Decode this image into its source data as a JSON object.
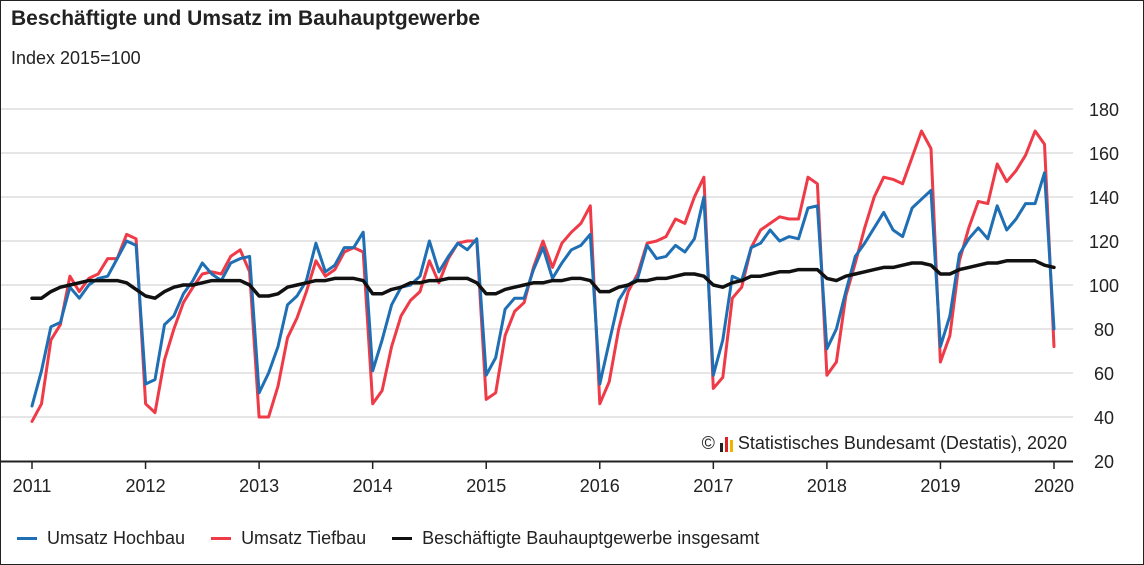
{
  "title": "Beschäftigte und Umsatz im Bauhauptgewerbe",
  "subtitle": "Index 2015=100",
  "copyright": "Statistisches Bundesamt (Destatis), 2020",
  "copyright_symbol": "©",
  "colors": {
    "hochbau": "#1f6fb4",
    "tiefbau": "#ef3b47",
    "beschaeftigte": "#111111",
    "grid": "#cccccc",
    "axis": "#222222"
  },
  "chart_data": {
    "type": "line",
    "x_start": "2011-01",
    "x_frequency": "monthly",
    "xlim": [
      "2011-01",
      "2020-01"
    ],
    "ylim": [
      20,
      180
    ],
    "yticks": [
      20,
      40,
      60,
      80,
      100,
      120,
      140,
      160,
      180
    ],
    "xtick_labels": [
      "2011",
      "2012",
      "2013",
      "2014",
      "2015",
      "2016",
      "2017",
      "2018",
      "2019",
      "2020"
    ],
    "grid": true,
    "legend_position": "bottom",
    "series": [
      {
        "name": "Umsatz Hochbau",
        "color": "#1f6fb4",
        "values": [
          45,
          61,
          81,
          83,
          99,
          94,
          100,
          103,
          104,
          112,
          120,
          118,
          55,
          57,
          82,
          86,
          96,
          102,
          110,
          105,
          102,
          110,
          112,
          113,
          51,
          60,
          72,
          91,
          95,
          102,
          119,
          106,
          109,
          117,
          117,
          124,
          61,
          75,
          91,
          99,
          100,
          104,
          120,
          106,
          113,
          119,
          116,
          121,
          59,
          67,
          89,
          94,
          94,
          107,
          117,
          103,
          110,
          116,
          118,
          123,
          55,
          74,
          93,
          100,
          103,
          118,
          112,
          113,
          118,
          115,
          121,
          140,
          59,
          75,
          104,
          102,
          117,
          119,
          125,
          120,
          122,
          121,
          135,
          136,
          71,
          80,
          97,
          113,
          119,
          126,
          133,
          125,
          122,
          135,
          139,
          143,
          72,
          86,
          114,
          121,
          126,
          121,
          136,
          125,
          130,
          137,
          137,
          151,
          80
        ]
      },
      {
        "name": "Umsatz Tiefbau",
        "color": "#ef3b47",
        "values": [
          38,
          46,
          75,
          82,
          104,
          97,
          103,
          105,
          112,
          112,
          123,
          121,
          46,
          42,
          66,
          80,
          92,
          99,
          105,
          106,
          105,
          113,
          116,
          106,
          40,
          40,
          54,
          76,
          85,
          97,
          111,
          104,
          107,
          115,
          117,
          115,
          46,
          52,
          72,
          86,
          93,
          97,
          111,
          101,
          112,
          119,
          120,
          120,
          48,
          51,
          77,
          88,
          92,
          108,
          120,
          108,
          119,
          124,
          128,
          136,
          46,
          56,
          80,
          97,
          105,
          119,
          120,
          122,
          130,
          128,
          140,
          149,
          53,
          58,
          94,
          99,
          117,
          125,
          128,
          131,
          130,
          130,
          149,
          146,
          59,
          65,
          95,
          110,
          126,
          140,
          149,
          148,
          146,
          158,
          170,
          162,
          65,
          77,
          111,
          126,
          138,
          137,
          155,
          147,
          152,
          159,
          170,
          164,
          72
        ]
      },
      {
        "name": "Beschäftigte Bauhauptgewerbe insgesamt",
        "color": "#111111",
        "values": [
          94,
          94,
          97,
          99,
          100,
          101,
          102,
          102,
          102,
          102,
          101,
          98,
          95,
          94,
          97,
          99,
          100,
          100,
          101,
          102,
          102,
          102,
          102,
          100,
          95,
          95,
          96,
          99,
          100,
          101,
          102,
          102,
          103,
          103,
          103,
          102,
          96,
          96,
          98,
          99,
          101,
          101,
          102,
          102,
          103,
          103,
          103,
          101,
          96,
          96,
          98,
          99,
          100,
          101,
          101,
          102,
          102,
          103,
          103,
          102,
          97,
          97,
          99,
          100,
          102,
          102,
          103,
          103,
          104,
          105,
          105,
          104,
          100,
          99,
          101,
          102,
          104,
          104,
          105,
          106,
          106,
          107,
          107,
          107,
          103,
          102,
          104,
          105,
          106,
          107,
          108,
          108,
          109,
          110,
          110,
          109,
          105,
          105,
          107,
          108,
          109,
          110,
          110,
          111,
          111,
          111,
          111,
          109,
          108
        ]
      }
    ]
  }
}
